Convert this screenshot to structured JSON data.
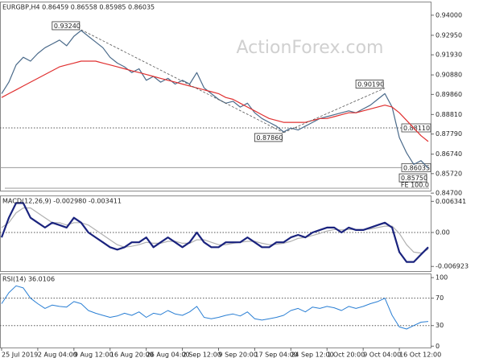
{
  "chart_data": [
    {
      "type": "line",
      "title": "EURGBP,H4  0.86459 0.86558 0.85985 0.86035",
      "watermark": "ActionForex.com",
      "note": "FE 100.0",
      "ylim": [
        0.8483,
        0.9471
      ],
      "yticks": [
        {
          "value": 0.94,
          "label": "0.94000"
        },
        {
          "value": 0.9295,
          "label": "0.92950"
        },
        {
          "value": 0.9193,
          "label": "0.91930"
        },
        {
          "value": 0.9088,
          "label": "0.90880"
        },
        {
          "value": 0.8986,
          "label": "0.89860"
        },
        {
          "value": 0.8881,
          "label": "0.88810"
        },
        {
          "value": 0.8779,
          "label": "0.87790"
        },
        {
          "value": 0.8674,
          "label": "0.86740"
        },
        {
          "value": 0.8572,
          "label": "0.85720"
        },
        {
          "value": 0.847,
          "label": "0.84700"
        }
      ],
      "levels": [
        {
          "value": 0.8811,
          "label": "0.88110",
          "style": "dotted"
        },
        {
          "value": 0.86035,
          "label": "0.86035",
          "style": "solid"
        }
      ],
      "annotations": [
        {
          "label": "0.93240",
          "value": 0.9324,
          "index": 11
        },
        {
          "label": "0.87860",
          "value": 0.8786,
          "index": 39
        },
        {
          "label": "0.90190",
          "value": 0.9019,
          "index": 53
        },
        {
          "label": "0.85750",
          "value": 0.8575,
          "index": 59
        }
      ],
      "series": [
        {
          "color": "#4a6a8a",
          "width": 1.2,
          "values": [
            0.899,
            0.905,
            0.914,
            0.918,
            0.916,
            0.92,
            0.923,
            0.925,
            0.927,
            0.924,
            0.929,
            0.932,
            0.929,
            0.926,
            0.923,
            0.918,
            0.915,
            0.913,
            0.91,
            0.912,
            0.906,
            0.908,
            0.905,
            0.907,
            0.904,
            0.906,
            0.904,
            0.91,
            0.902,
            0.899,
            0.896,
            0.894,
            0.895,
            0.892,
            0.894,
            0.889,
            0.886,
            0.884,
            0.882,
            0.879,
            0.881,
            0.88,
            0.882,
            0.884,
            0.886,
            0.887,
            0.888,
            0.889,
            0.89,
            0.889,
            0.891,
            0.893,
            0.896,
            0.899,
            0.892,
            0.876,
            0.868,
            0.862,
            0.864,
            0.86
          ]
        },
        {
          "color": "#e03030",
          "width": 1.2,
          "values": [
            0.897,
            0.899,
            0.901,
            0.903,
            0.905,
            0.907,
            0.909,
            0.911,
            0.913,
            0.914,
            0.915,
            0.916,
            0.916,
            0.916,
            0.915,
            0.914,
            0.913,
            0.912,
            0.911,
            0.91,
            0.909,
            0.908,
            0.907,
            0.906,
            0.905,
            0.904,
            0.903,
            0.902,
            0.901,
            0.9,
            0.899,
            0.897,
            0.896,
            0.894,
            0.892,
            0.89,
            0.888,
            0.886,
            0.885,
            0.884,
            0.884,
            0.884,
            0.884,
            0.885,
            0.886,
            0.886,
            0.887,
            0.888,
            0.889,
            0.889,
            0.89,
            0.891,
            0.892,
            0.893,
            0.892,
            0.889,
            0.885,
            0.881,
            0.877,
            0.874
          ]
        }
      ]
    },
    {
      "type": "line",
      "title": "MACD(12,26,9) -0.002980 -0.003411",
      "ylim": [
        -0.00787,
        0.00754
      ],
      "yticks": [
        0.006341,
        {
          "value": 0,
          "label": "0.00"
        },
        -0.006923
      ],
      "levels": [
        {
          "value": 0,
          "style": "dotted"
        }
      ],
      "series": [
        {
          "color": "#b0b0b0",
          "width": 1.2,
          "values": [
            0.001,
            0.002,
            0.004,
            0.005,
            0.005,
            0.004,
            0.003,
            0.002,
            0.002,
            0.0015,
            0.002,
            0.002,
            0.0015,
            0.0005,
            -0.0005,
            -0.0015,
            -0.0025,
            -0.003,
            -0.0028,
            -0.0025,
            -0.002,
            -0.0022,
            -0.0022,
            -0.0018,
            -0.0018,
            -0.0022,
            -0.0022,
            -0.0015,
            -0.0015,
            -0.002,
            -0.0025,
            -0.0025,
            -0.0022,
            -0.002,
            -0.0018,
            -0.0018,
            -0.0022,
            -0.0025,
            -0.0024,
            -0.0022,
            -0.0018,
            -0.0012,
            -0.001,
            -0.0006,
            -0.0002,
            0.0003,
            0.0006,
            0.0005,
            0.0006,
            0.0006,
            0.0006,
            0.0007,
            0.001,
            0.0013,
            0.0013,
            -0.0002,
            -0.0025,
            -0.004,
            -0.0042,
            -0.0034
          ]
        },
        {
          "color": "#1a237e",
          "width": 2.2,
          "values": [
            -0.001,
            0.003,
            0.006,
            0.006,
            0.003,
            0.002,
            0.001,
            0.002,
            0.0015,
            0.001,
            0.003,
            0.002,
            0.0,
            -0.001,
            -0.002,
            -0.003,
            -0.0035,
            -0.003,
            -0.002,
            -0.002,
            -0.001,
            -0.003,
            -0.002,
            -0.001,
            -0.002,
            -0.003,
            -0.002,
            0.0,
            -0.002,
            -0.003,
            -0.003,
            -0.002,
            -0.002,
            -0.002,
            -0.001,
            -0.002,
            -0.003,
            -0.003,
            -0.002,
            -0.002,
            -0.001,
            -0.0005,
            -0.001,
            0.0,
            0.0005,
            0.001,
            0.001,
            0.0,
            0.001,
            0.0005,
            0.0005,
            0.001,
            0.0015,
            0.002,
            0.001,
            -0.004,
            -0.006,
            -0.006,
            -0.0045,
            -0.003
          ]
        }
      ]
    },
    {
      "type": "line",
      "title": "RSI(14) 36.0106",
      "ylim": [
        -2,
        106
      ],
      "yticks": [
        100,
        70,
        30,
        0
      ],
      "levels": [
        {
          "value": 70,
          "style": "dotted"
        },
        {
          "value": 30,
          "style": "dotted"
        }
      ],
      "categories": [
        "25 Jul 2019",
        null,
        null,
        null,
        null,
        "2 Aug 04:00",
        null,
        null,
        null,
        null,
        "9 Aug 12:00",
        null,
        null,
        null,
        null,
        "16 Aug 20:00",
        null,
        null,
        null,
        null,
        "26 Aug 04:00",
        null,
        null,
        null,
        null,
        "2 Sep 12:00",
        null,
        null,
        null,
        null,
        "9 Sep 20:00",
        null,
        null,
        null,
        null,
        "17 Sep 04:00",
        null,
        null,
        null,
        null,
        "24 Sep 12:00",
        null,
        null,
        null,
        null,
        "1 Oct 20:00",
        null,
        null,
        null,
        null,
        "9 Oct 04:00",
        null,
        null,
        null,
        null,
        "16 Oct 12:00",
        null,
        null,
        null,
        null
      ],
      "series": [
        {
          "color": "#2a7fd4",
          "width": 1,
          "values": [
            62,
            78,
            88,
            85,
            70,
            62,
            55,
            60,
            58,
            57,
            65,
            62,
            52,
            48,
            45,
            42,
            44,
            48,
            45,
            50,
            42,
            48,
            46,
            52,
            47,
            45,
            50,
            58,
            42,
            40,
            42,
            45,
            47,
            44,
            50,
            40,
            38,
            40,
            42,
            45,
            52,
            55,
            50,
            57,
            55,
            58,
            56,
            52,
            58,
            55,
            58,
            62,
            65,
            70,
            45,
            28,
            25,
            30,
            35,
            36
          ]
        }
      ]
    }
  ]
}
